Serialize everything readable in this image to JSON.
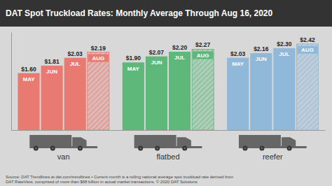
{
  "chart_data": {
    "type": "bar",
    "title": "DAT Spot Truckload Rates: Monthly Average Through Aug 16, 2020",
    "categories": [
      "van",
      "flatbed",
      "reefer"
    ],
    "series": [
      {
        "name": "MAY",
        "colors": [
          "#e87a72",
          "#5db87a",
          "#90b8d8"
        ],
        "values": [
          1.6,
          1.9,
          2.03
        ],
        "value_labels": [
          "$1.60",
          "$1.90",
          "$2.03"
        ]
      },
      {
        "name": "JUN",
        "colors": [
          "#e87a72",
          "#5db87a",
          "#90b8d8"
        ],
        "values": [
          1.81,
          2.07,
          2.16
        ],
        "value_labels": [
          "$1.81",
          "$2.07",
          "$2.16"
        ]
      },
      {
        "name": "JUL",
        "colors": [
          "#e87a72",
          "#5db87a",
          "#90b8d8"
        ],
        "values": [
          2.03,
          2.2,
          2.3
        ],
        "value_labels": [
          "$2.03",
          "$2.20",
          "$2.30"
        ]
      },
      {
        "name": "AUG",
        "colors": [
          "#e87a72",
          "#5db87a",
          "#90b8d8"
        ],
        "values": [
          2.19,
          2.27,
          2.42
        ],
        "value_labels": [
          "$2.19",
          "$2.27",
          "$2.42"
        ]
      }
    ],
    "ylim": [
      0,
      2.75
    ],
    "data_labels": true,
    "tick_labels": "x",
    "annotations": [
      "Source: DAT Trendlines at dat.com/trendlines • Current month is a rolling national average spot truckload rate derived from\nDAT RateView, comprised of more than $68 billion in actual market transactions. © 2020 DAT Solutions"
    ]
  }
}
